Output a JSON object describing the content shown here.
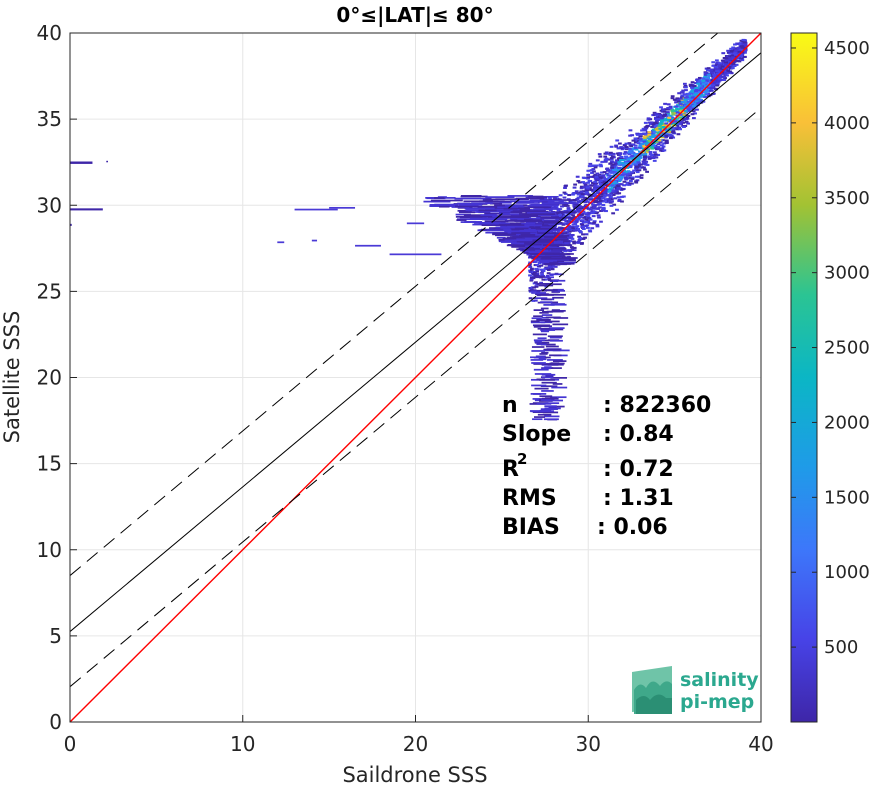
{
  "chart_data": {
    "type": "heatmap",
    "title": "0°≤|LAT|≤ 80°",
    "xlabel": "Saildrone SSS",
    "ylabel": "Satellite SSS",
    "xlim": [
      0,
      40
    ],
    "ylim": [
      0,
      40
    ],
    "xticks": [
      "0",
      "10",
      "20",
      "30",
      "40"
    ],
    "yticks": [
      "0",
      "5",
      "10",
      "15",
      "20",
      "25",
      "30",
      "35",
      "40"
    ],
    "grid": true,
    "colorbar": {
      "range": [
        0,
        4600
      ],
      "ticks": [
        "500",
        "1000",
        "1500",
        "2000",
        "2500",
        "3000",
        "3500",
        "4000",
        "4500"
      ],
      "colormap": "parula"
    },
    "lines": [
      {
        "kind": "identity",
        "color": "#ff0000",
        "style": "solid",
        "x": [
          0,
          40
        ],
        "y": [
          0,
          40
        ]
      },
      {
        "kind": "regression",
        "color": "#000000",
        "style": "solid",
        "slope": 0.84,
        "intercept": 5.25
      },
      {
        "kind": "regression-plus",
        "color": "#000000",
        "style": "dashed",
        "slope": 0.84,
        "intercept": 8.5
      },
      {
        "kind": "regression-minus",
        "color": "#000000",
        "style": "dashed",
        "slope": 0.84,
        "intercept": 2.05
      }
    ],
    "density_regions": [
      {
        "x": [
          26.5,
          39.0
        ],
        "y_center_slope": 1.0,
        "y_center_offset": 0.0,
        "spread": 1.8
      },
      {
        "x": [
          20.0,
          28.0
        ],
        "y_band": [
          26.5,
          30.5
        ]
      },
      {
        "x": [
          0.0,
          2.0
        ],
        "y_band": [
          29.7,
          29.8
        ]
      },
      {
        "x": [
          0.0,
          2.0
        ],
        "y_band": [
          32.4,
          32.6
        ]
      },
      {
        "x": [
          26.5,
          28.5
        ],
        "y_band": [
          17.5,
          26.0
        ]
      }
    ],
    "stats": [
      {
        "label": "n",
        "value": ": 822360"
      },
      {
        "label": "Slope",
        "value": ": 0.84"
      },
      {
        "label": "R",
        "sup": "2",
        "value": ": 0.72"
      },
      {
        "label": "RMS",
        "value": ": 1.31"
      },
      {
        "label": "BIAS",
        "value": ": 0.06"
      }
    ]
  },
  "logo": {
    "line1": "salinity",
    "line2": "pi-mep",
    "color": "#2ba88f"
  }
}
